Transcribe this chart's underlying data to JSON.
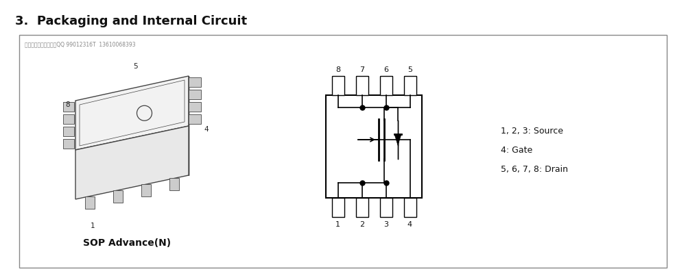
{
  "title": "3.  Packaging and Internal Circuit",
  "title_fontsize": 13,
  "title_fontweight": "bold",
  "watermark": "东芝代理、大量现货；QQ 99012316T  13610068393",
  "package_label": "SOP Advance(N)",
  "pin_labels_top": [
    "8",
    "7",
    "6",
    "5"
  ],
  "pin_labels_bottom": [
    "1",
    "2",
    "3",
    "4"
  ],
  "legend_lines": [
    "1, 2, 3: Source",
    "4: Gate",
    "5, 6, 7, 8: Drain"
  ],
  "bg_color": "#ffffff",
  "box_color": "#000000",
  "line_color": "#444444",
  "light_gray": "#aaaaaa"
}
